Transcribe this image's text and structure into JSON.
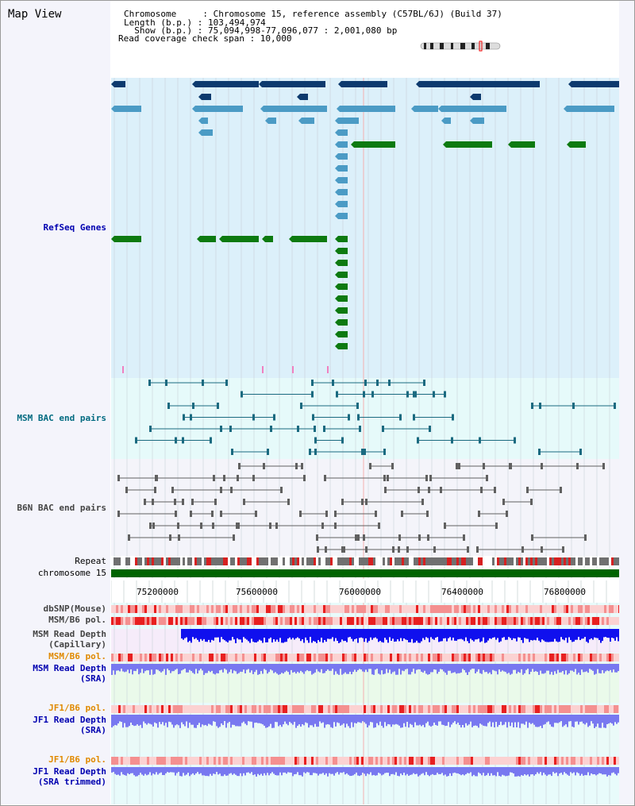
{
  "title": "Map View",
  "header": {
    "line1": "Chromosome     : Chromosome 15, reference assembly (C57BL/6J) (Build 37)",
    "line2": "Length (b.p.) : 103,494,974",
    "line3": "  Show (b.p.) : 75,094,998-77,096,077 : 2,001,080 bp",
    "line4": "Read coverage check span : 10,000"
  },
  "labels": {
    "refseq": "RefSeq Genes",
    "msm_bac": "MSM BAC end pairs",
    "b6n_bac": "B6N BAC end pairs",
    "repeat": "Repeat",
    "chrom": "chromosome 15",
    "dbsnp": "dbSNP(Mouse)",
    "msm_b6_pol": "MSM/B6 pol.",
    "msm_depth_cap_1": "MSM Read Depth",
    "msm_depth_cap_2": "(Capillary)",
    "msm_b6_pol2": "MSM/B6 pol.",
    "msm_depth_sra_1": "MSM Read Depth",
    "msm_depth_sra_2": "(SRA)",
    "jf1_pol": "JF1/B6 pol.",
    "jf1_depth_1": "JF1 Read Depth",
    "jf1_depth_2": "(SRA)",
    "jf1_pol2": "JF1/B6 pol.",
    "jf1_depth_t1": "JF1 Read Depth",
    "jf1_depth_t2": "(SRA trimmed)"
  },
  "ticks": [
    "75200000",
    "75600000",
    "76000000",
    "76400000",
    "76800000"
  ],
  "colors": {
    "refseq_dark": "#0d3a6e",
    "refseq_mid": "#4b9bc5",
    "refseq_green": "#0d7a10",
    "msm_pair": "#1a6a80",
    "b6n_pair": "#606060",
    "chrom_bar": "#006400",
    "depth_blue": "#1010ee",
    "depth_sra": "#7878f0"
  }
}
